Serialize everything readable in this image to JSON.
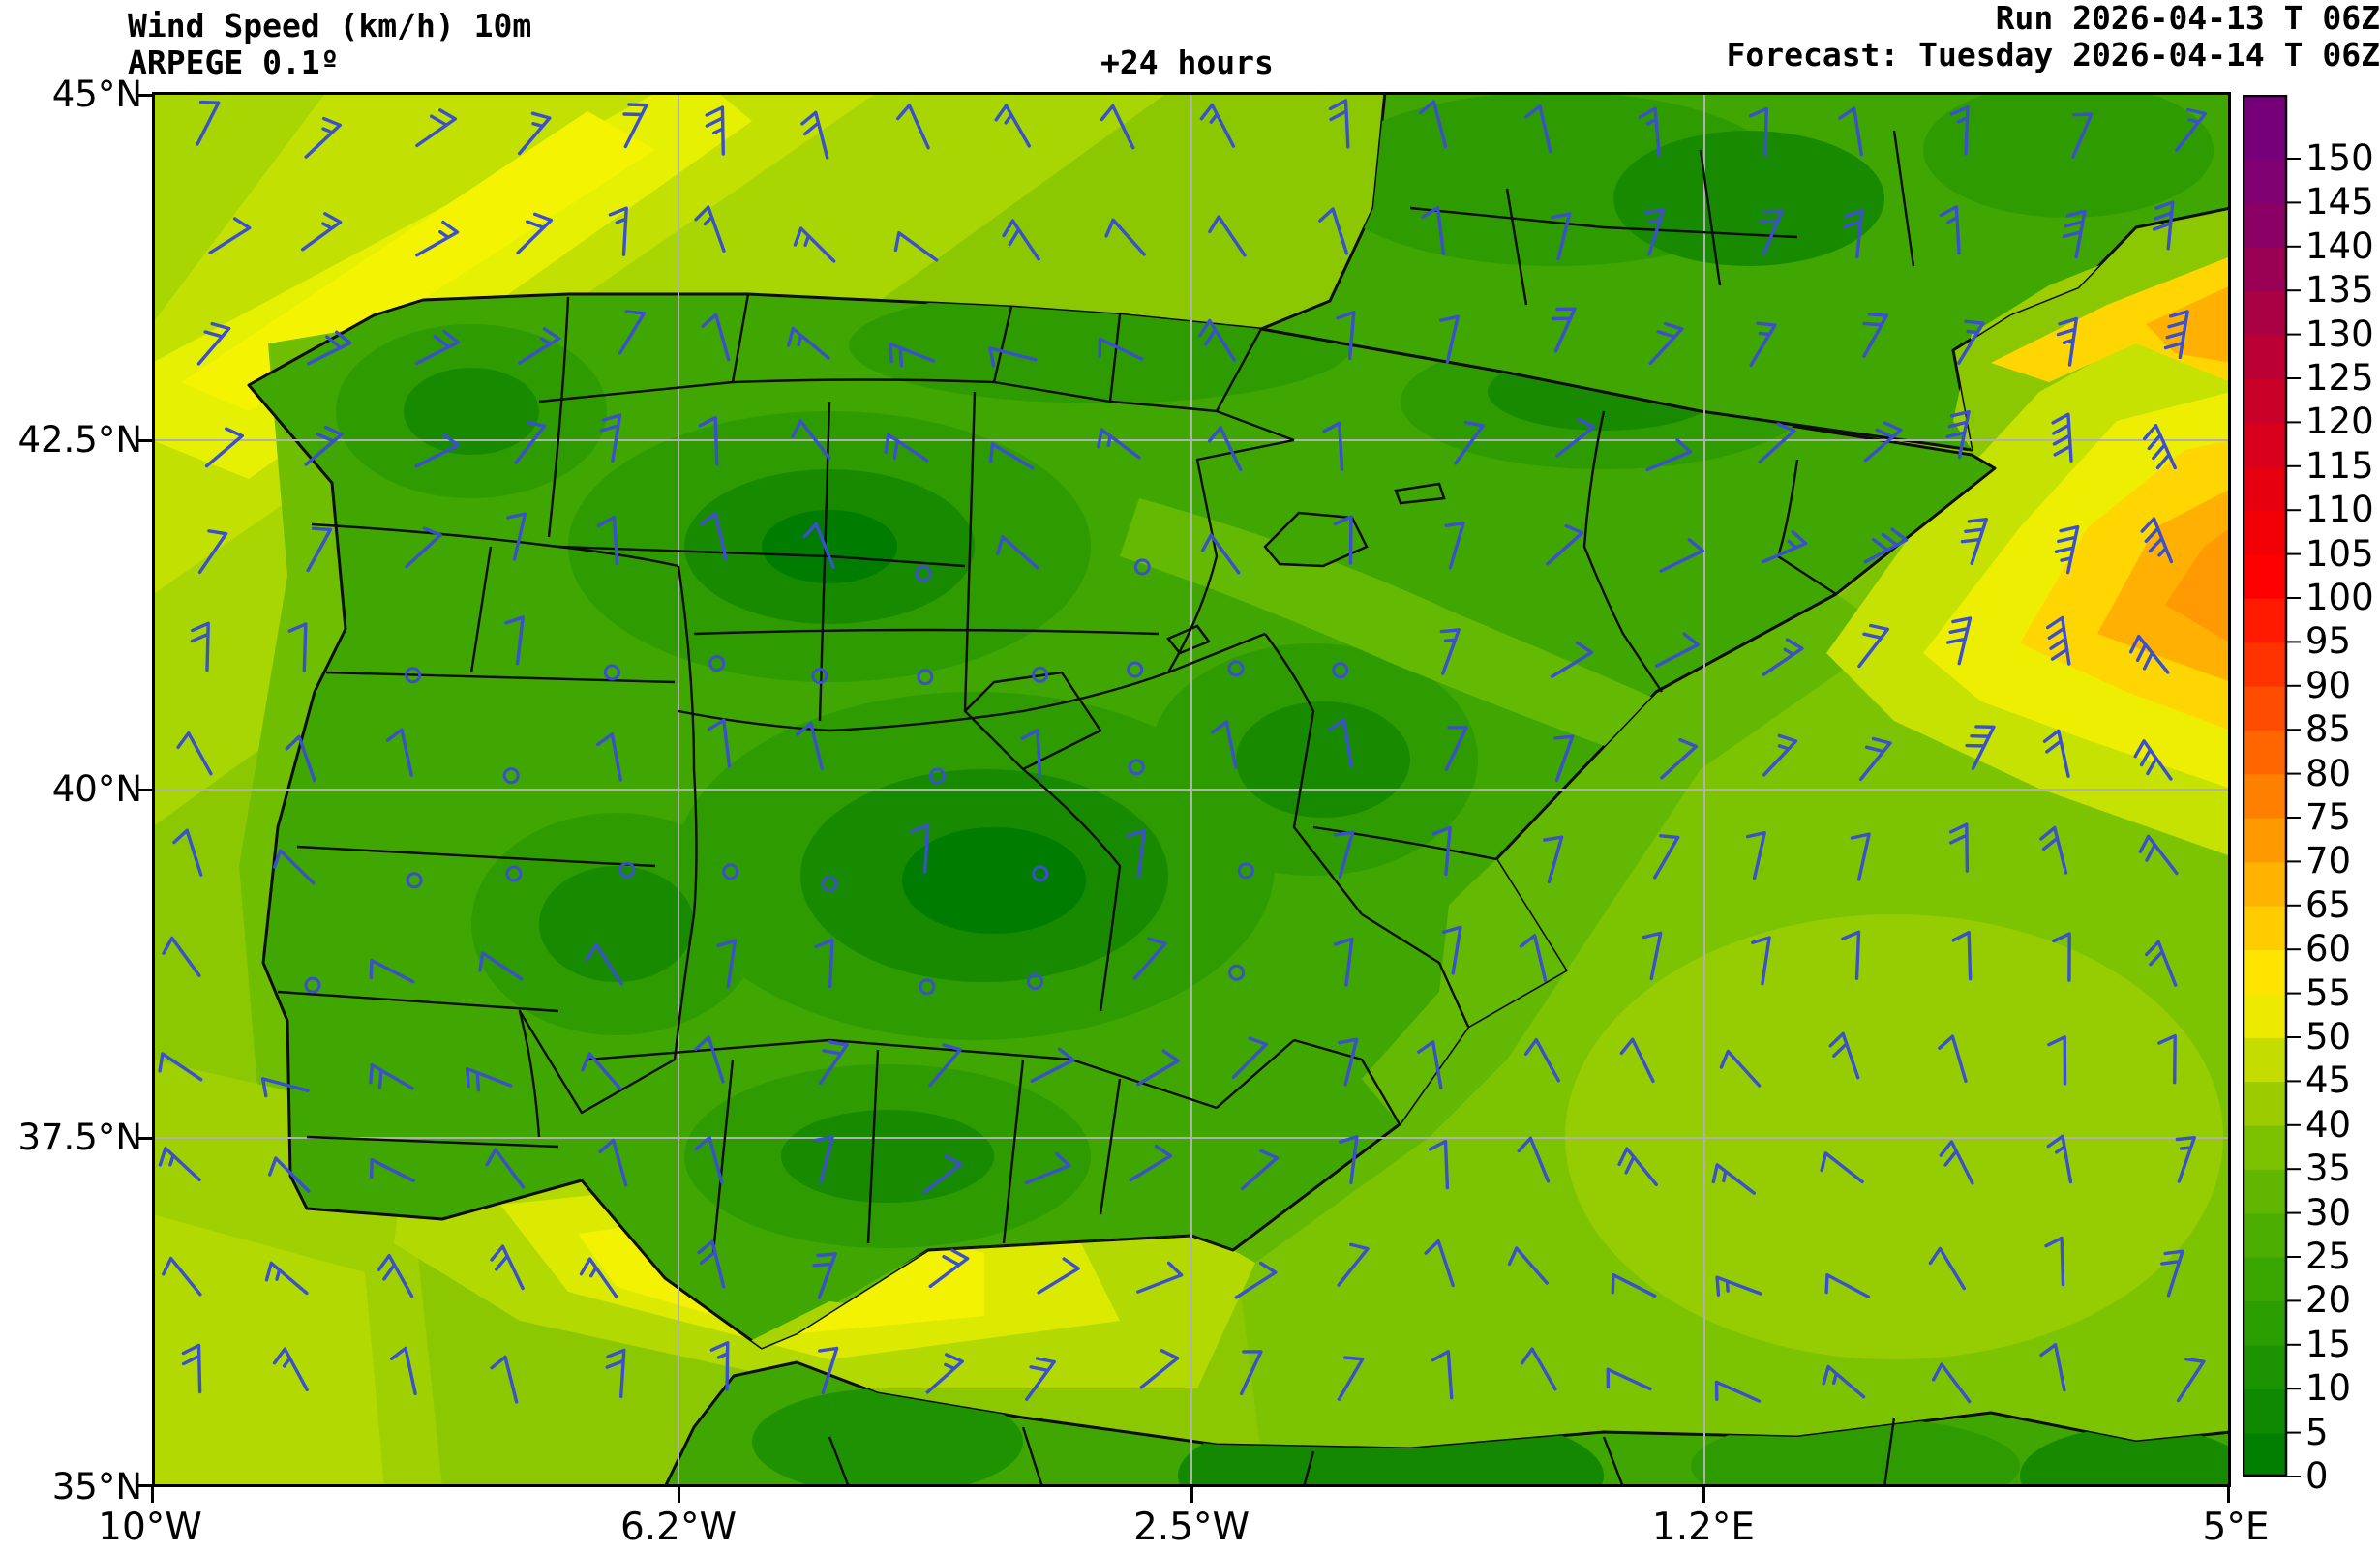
{
  "header": {
    "title_line1": "Wind Speed (km/h) 10m",
    "title_line2": "ARPEGE 0.1º",
    "lead_time": "+24 hours",
    "run": "Run 2026-04-13 T 06Z",
    "forecast": "Forecast: Tuesday 2026-04-14 T 06Z"
  },
  "axes": {
    "lat_labels": [
      "45°N",
      "42.5°N",
      "40°N",
      "37.5°N",
      "35°N"
    ],
    "lon_labels": [
      "10°W",
      "6.2°W",
      "2.5°W",
      "1.2°E",
      "5°E"
    ]
  },
  "colorbar": {
    "unit": "km/h",
    "ticks": [
      0,
      5,
      10,
      15,
      20,
      25,
      30,
      35,
      40,
      45,
      50,
      55,
      60,
      65,
      70,
      75,
      80,
      85,
      90,
      95,
      100,
      105,
      110,
      115,
      120,
      125,
      130,
      135,
      140,
      145,
      150
    ],
    "colors": [
      "#007F00",
      "#0E8900",
      "#1C9300",
      "#2A9D00",
      "#39A600",
      "#4CAE00",
      "#60B600",
      "#7BC100",
      "#9BCC00",
      "#C4DC00",
      "#EDEA00",
      "#FFE400",
      "#FFCC00",
      "#FFB300",
      "#FF9900",
      "#FF8000",
      "#FF6600",
      "#FF4D00",
      "#FF3300",
      "#FF1A00",
      "#FF0000",
      "#F30007",
      "#E6000F",
      "#D8001A",
      "#C90027",
      "#BA0035",
      "#AA0044",
      "#9A0054",
      "#8A0064",
      "#7F0070",
      "#76007A"
    ]
  },
  "map": {
    "region": "Iberian Peninsula",
    "barb_color": "#3A50CC",
    "grid_color": "#B0B0B0",
    "border_color": "#0D0D0D"
  }
}
